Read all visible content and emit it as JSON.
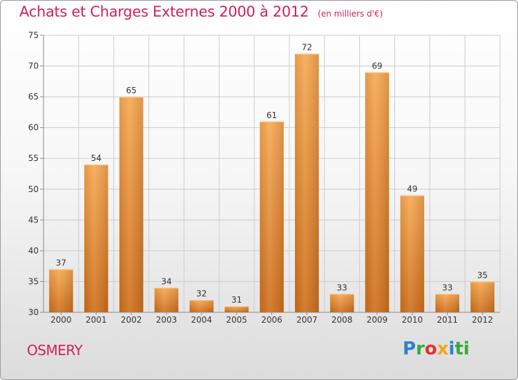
{
  "title": "Achats et Charges Externes 2000 à 2012",
  "unit_note": "(en milliers d'€)",
  "place": "OSMERY",
  "logo_letters": [
    "P",
    "r",
    "o",
    "x",
    "i",
    "ti"
  ],
  "colors": {
    "title": "#d02060",
    "bar_top": "#f8a850",
    "bar_bottom": "#d06f1a",
    "grid": "#cccccc"
  },
  "chart_data": {
    "type": "bar",
    "categories": [
      "2000",
      "2001",
      "2002",
      "2003",
      "2004",
      "2005",
      "2006",
      "2007",
      "2008",
      "2009",
      "2010",
      "2011",
      "2012"
    ],
    "values": [
      37,
      54,
      65,
      34,
      32,
      31,
      61,
      72,
      33,
      69,
      49,
      33,
      35
    ],
    "ylim": [
      30,
      75
    ],
    "yticks": [
      30,
      35,
      40,
      45,
      50,
      55,
      60,
      65,
      70,
      75
    ],
    "xlabel": "",
    "ylabel": "",
    "grid": true,
    "data_labels": true
  }
}
